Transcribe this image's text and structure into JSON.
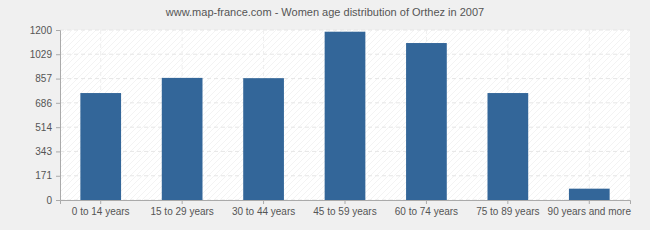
{
  "chart_data": {
    "type": "bar",
    "title": "www.map-france.com - Women age distribution of Orthez in 2007",
    "categories": [
      "0 to 14 years",
      "15 to 29 years",
      "30 to 44 years",
      "45 to 59 years",
      "60 to 74 years",
      "75 to 89 years",
      "90 years and more"
    ],
    "values": [
      755,
      862,
      860,
      1188,
      1108,
      755,
      80
    ],
    "color": "#336699",
    "ylim": [
      0,
      1200
    ],
    "yticks": [
      0,
      171,
      343,
      514,
      686,
      857,
      1029,
      1200
    ],
    "grid": true
  }
}
